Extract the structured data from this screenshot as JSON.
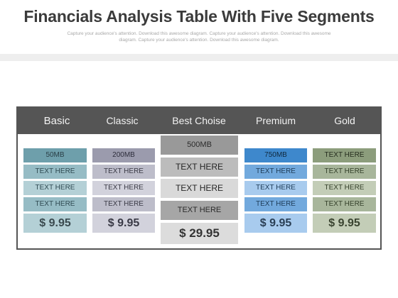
{
  "page": {
    "title": "Financials Analysis Table With Five Segments",
    "subtitle_line1": "Capture your audience's attention. Download this awesome diagram. Capture your audience's attention. Download this awesome",
    "subtitle_line2": "diagram. Capture your audience's attention. Download this awesome diagram."
  },
  "table": {
    "segments": [
      {
        "name": "Basic",
        "storage": "50MB",
        "features": [
          "TEXT HERE",
          "TEXT HERE",
          "TEXT HERE"
        ],
        "price": "$ 9.95"
      },
      {
        "name": "Classic",
        "storage": "200MB",
        "features": [
          "TEXT HERE",
          "TEXT HERE",
          "TEXT HERE"
        ],
        "price": "$ 9.95"
      },
      {
        "name": "Best Choise",
        "storage": "500MB",
        "features": [
          "TEXT HERE",
          "TEXT HERE",
          "TEXT HERE"
        ],
        "price": "$ 29.95"
      },
      {
        "name": "Premium",
        "storage": "750MB",
        "features": [
          "TEXT HERE",
          "TEXT HERE",
          "TEXT HERE"
        ],
        "price": "$ 9.95"
      },
      {
        "name": "Gold",
        "storage": "TEXT HERE",
        "features": [
          "TEXT HERE",
          "TEXT HERE",
          "TEXT HERE"
        ],
        "price": "$ 9.95"
      }
    ]
  },
  "colors": {
    "header_bar": "#555555",
    "basic": {
      "top": "#6e9fab",
      "rows": [
        "#96bcc5",
        "#b4d0d6",
        "#96bcc5"
      ],
      "price": "#b4d0d6"
    },
    "classic": {
      "top": "#9b9bad",
      "rows": [
        "#bdbdca",
        "#d2d2dc",
        "#bdbdca"
      ],
      "price": "#d2d2dc"
    },
    "best": {
      "top": "#999999",
      "rows": [
        "#bcbcbc",
        "#d9d9d9",
        "#a6a6a6"
      ],
      "price": "#dcdcdc"
    },
    "premium": {
      "top": "#3e88cc",
      "rows": [
        "#72a9dd",
        "#a8cbee",
        "#72a9dd"
      ],
      "price": "#a8cbee"
    },
    "gold": {
      "top": "#8c9d7c",
      "rows": [
        "#a8b69b",
        "#c3cdb7",
        "#a8b69b"
      ],
      "price": "#c3cdb7"
    }
  }
}
